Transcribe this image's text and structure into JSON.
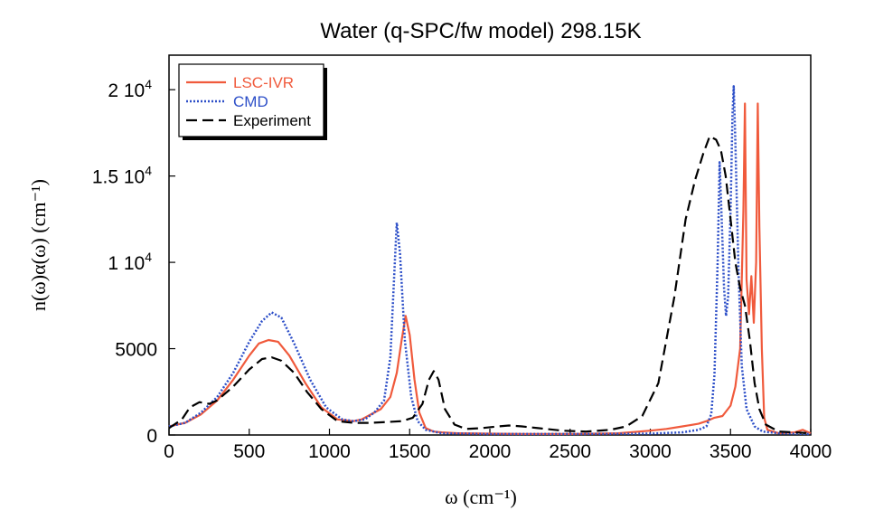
{
  "chart_data": {
    "type": "line",
    "title": "Water (q-SPC/fw model) 298.15K",
    "xlabel": "ω (cm⁻¹)",
    "ylabel": "n(ω)α(ω)  (cm⁻¹)",
    "xlim": [
      0,
      4000
    ],
    "ylim": [
      0,
      22000
    ],
    "x_ticks": [
      {
        "value": 0,
        "label": "0"
      },
      {
        "value": 500,
        "label": "500"
      },
      {
        "value": 1000,
        "label": "1000"
      },
      {
        "value": 1500,
        "label": "1500"
      },
      {
        "value": 2000,
        "label": "2000"
      },
      {
        "value": 2500,
        "label": "2500"
      },
      {
        "value": 3000,
        "label": "3000"
      },
      {
        "value": 3500,
        "label": "3500"
      },
      {
        "value": 4000,
        "label": "4000"
      }
    ],
    "y_ticks": [
      {
        "value": 0,
        "label": "0",
        "exp": ""
      },
      {
        "value": 5000,
        "label": "5000",
        "exp": ""
      },
      {
        "value": 10000,
        "label": "1 10",
        "exp": "4"
      },
      {
        "value": 15000,
        "label": "1.5 10",
        "exp": "4"
      },
      {
        "value": 20000,
        "label": "2 10",
        "exp": "4"
      }
    ],
    "grid": false,
    "legend_position": "top-left",
    "series": [
      {
        "name": "LSC-IVR",
        "color": "#f05a3c",
        "style": "solid",
        "points": [
          [
            0,
            500
          ],
          [
            100,
            700
          ],
          [
            200,
            1200
          ],
          [
            300,
            2000
          ],
          [
            400,
            3200
          ],
          [
            500,
            4600
          ],
          [
            560,
            5300
          ],
          [
            620,
            5500
          ],
          [
            680,
            5400
          ],
          [
            750,
            4600
          ],
          [
            850,
            3000
          ],
          [
            950,
            1600
          ],
          [
            1050,
            900
          ],
          [
            1150,
            800
          ],
          [
            1200,
            900
          ],
          [
            1260,
            1200
          ],
          [
            1320,
            1500
          ],
          [
            1380,
            2200
          ],
          [
            1420,
            3600
          ],
          [
            1450,
            5500
          ],
          [
            1475,
            6900
          ],
          [
            1500,
            5800
          ],
          [
            1530,
            3200
          ],
          [
            1560,
            1300
          ],
          [
            1600,
            400
          ],
          [
            1650,
            200
          ],
          [
            1700,
            150
          ],
          [
            1800,
            100
          ],
          [
            2000,
            80
          ],
          [
            2200,
            60
          ],
          [
            2500,
            60
          ],
          [
            2800,
            100
          ],
          [
            3000,
            250
          ],
          [
            3100,
            350
          ],
          [
            3200,
            500
          ],
          [
            3300,
            650
          ],
          [
            3350,
            800
          ],
          [
            3400,
            1000
          ],
          [
            3450,
            1100
          ],
          [
            3500,
            1700
          ],
          [
            3530,
            2800
          ],
          [
            3560,
            5000
          ],
          [
            3580,
            13000
          ],
          [
            3590,
            19200
          ],
          [
            3600,
            9000
          ],
          [
            3615,
            7000
          ],
          [
            3630,
            9200
          ],
          [
            3645,
            6500
          ],
          [
            3660,
            10000
          ],
          [
            3670,
            19200
          ],
          [
            3680,
            12000
          ],
          [
            3695,
            5000
          ],
          [
            3710,
            1000
          ],
          [
            3730,
            300
          ],
          [
            3800,
            100
          ],
          [
            3900,
            150
          ],
          [
            3950,
            300
          ],
          [
            4000,
            100
          ]
        ]
      },
      {
        "name": "CMD",
        "color": "#2d4fc8",
        "style": "dotted",
        "points": [
          [
            0,
            500
          ],
          [
            100,
            700
          ],
          [
            200,
            1300
          ],
          [
            300,
            2200
          ],
          [
            400,
            3600
          ],
          [
            500,
            5400
          ],
          [
            580,
            6600
          ],
          [
            640,
            7100
          ],
          [
            700,
            6800
          ],
          [
            780,
            5300
          ],
          [
            880,
            3200
          ],
          [
            980,
            1600
          ],
          [
            1080,
            900
          ],
          [
            1150,
            800
          ],
          [
            1220,
            900
          ],
          [
            1280,
            1300
          ],
          [
            1340,
            2000
          ],
          [
            1380,
            4500
          ],
          [
            1405,
            9500
          ],
          [
            1420,
            12300
          ],
          [
            1440,
            10500
          ],
          [
            1470,
            5500
          ],
          [
            1510,
            2200
          ],
          [
            1550,
            800
          ],
          [
            1600,
            300
          ],
          [
            1700,
            100
          ],
          [
            2000,
            60
          ],
          [
            2500,
            60
          ],
          [
            3000,
            80
          ],
          [
            3200,
            150
          ],
          [
            3300,
            300
          ],
          [
            3350,
            500
          ],
          [
            3380,
            1200
          ],
          [
            3400,
            3500
          ],
          [
            3420,
            10000
          ],
          [
            3432,
            15800
          ],
          [
            3445,
            12500
          ],
          [
            3460,
            8500
          ],
          [
            3472,
            6900
          ],
          [
            3485,
            8000
          ],
          [
            3500,
            13000
          ],
          [
            3512,
            18500
          ],
          [
            3520,
            20200
          ],
          [
            3530,
            17000
          ],
          [
            3550,
            9500
          ],
          [
            3570,
            4000
          ],
          [
            3600,
            1500
          ],
          [
            3650,
            500
          ],
          [
            3700,
            200
          ],
          [
            3800,
            100
          ],
          [
            4000,
            50
          ]
        ]
      },
      {
        "name": "Experiment",
        "color": "#000000",
        "style": "dashed",
        "points": [
          [
            0,
            400
          ],
          [
            80,
            900
          ],
          [
            130,
            1600
          ],
          [
            190,
            1900
          ],
          [
            250,
            1800
          ],
          [
            300,
            2000
          ],
          [
            400,
            2800
          ],
          [
            500,
            3800
          ],
          [
            580,
            4400
          ],
          [
            640,
            4500
          ],
          [
            700,
            4300
          ],
          [
            780,
            3600
          ],
          [
            860,
            2500
          ],
          [
            950,
            1500
          ],
          [
            1050,
            800
          ],
          [
            1150,
            700
          ],
          [
            1250,
            700
          ],
          [
            1350,
            750
          ],
          [
            1450,
            800
          ],
          [
            1520,
            1000
          ],
          [
            1580,
            1800
          ],
          [
            1620,
            3200
          ],
          [
            1650,
            3700
          ],
          [
            1680,
            3200
          ],
          [
            1720,
            1500
          ],
          [
            1780,
            600
          ],
          [
            1850,
            350
          ],
          [
            1950,
            400
          ],
          [
            2050,
            500
          ],
          [
            2120,
            550
          ],
          [
            2200,
            500
          ],
          [
            2300,
            400
          ],
          [
            2450,
            250
          ],
          [
            2600,
            200
          ],
          [
            2750,
            300
          ],
          [
            2850,
            500
          ],
          [
            2950,
            1100
          ],
          [
            3050,
            3000
          ],
          [
            3150,
            8000
          ],
          [
            3220,
            12500
          ],
          [
            3280,
            14800
          ],
          [
            3330,
            16300
          ],
          [
            3370,
            17300
          ],
          [
            3410,
            17100
          ],
          [
            3440,
            16500
          ],
          [
            3470,
            15000
          ],
          [
            3500,
            12500
          ],
          [
            3530,
            10000
          ],
          [
            3560,
            8500
          ],
          [
            3590,
            7500
          ],
          [
            3620,
            5500
          ],
          [
            3650,
            3000
          ],
          [
            3680,
            1500
          ],
          [
            3720,
            600
          ],
          [
            3800,
            200
          ],
          [
            3900,
            150
          ],
          [
            4000,
            100
          ]
        ]
      }
    ]
  }
}
